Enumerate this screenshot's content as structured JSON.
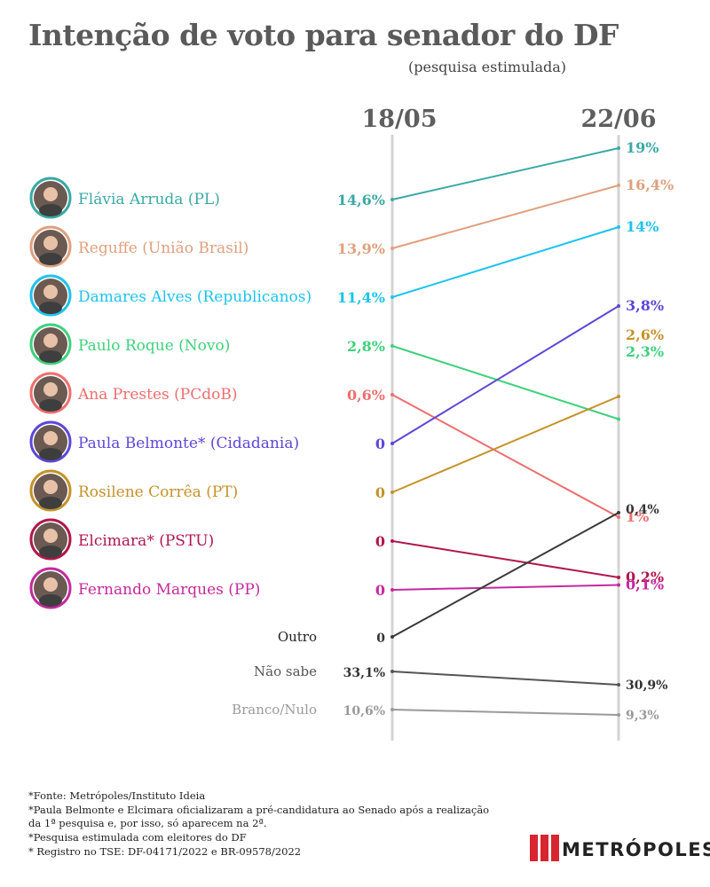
{
  "page": {
    "title": "Intenção de voto para senador do DF",
    "subtitle": "(pesquisa estimulada)"
  },
  "chart_data": {
    "type": "slope",
    "title": "Intenção de voto para senador do DF",
    "subtitle": "(pesquisa estimulada)",
    "x": [
      "18/05",
      "22/06"
    ],
    "series": [
      {
        "name": "Flávia Arruda (PL)",
        "photo": true,
        "color": "#3aa9a5",
        "values": [
          14.6,
          19
        ],
        "labels": [
          "14,6%",
          "19%"
        ]
      },
      {
        "name": "Reguffe (União Brasil)",
        "photo": true,
        "color": "#e0a07e",
        "values": [
          13.9,
          16.4
        ],
        "labels": [
          "13,9%",
          "16,4%"
        ]
      },
      {
        "name": "Damares Alves (Republicanos)",
        "photo": true,
        "color": "#1ec3ee",
        "values": [
          11.4,
          14
        ],
        "labels": [
          "11,4%",
          "14%"
        ]
      },
      {
        "name": "Paulo Roque (Novo)",
        "photo": true,
        "color": "#3fd17c",
        "values": [
          2.8,
          2.3
        ],
        "labels": [
          "2,8%",
          "2,3%"
        ]
      },
      {
        "name": "Ana Prestes  (PCdoB)",
        "photo": true,
        "color": "#ee6e6e",
        "values": [
          0.6,
          1
        ],
        "labels": [
          "0,6%",
          "1%"
        ]
      },
      {
        "name": "Paula Belmonte* (Cidadania)",
        "photo": true,
        "color": "#5e46d8",
        "values": [
          0,
          3.8
        ],
        "labels": [
          "0",
          "3,8%"
        ]
      },
      {
        "name": "Rosilene Corrêa  (PT)",
        "photo": true,
        "color": "#c4922a",
        "values": [
          0,
          2.6
        ],
        "labels": [
          "0",
          "2,6%"
        ]
      },
      {
        "name": "Elcimara* (PSTU)",
        "photo": true,
        "color": "#b0174a",
        "values": [
          0,
          0.2
        ],
        "labels": [
          "0",
          "0,2%"
        ]
      },
      {
        "name": "Fernando Marques (PP)",
        "photo": true,
        "color": "#c42a9e",
        "values": [
          0,
          0.1
        ],
        "labels": [
          "0",
          "0,1%"
        ]
      },
      {
        "name": "Outro",
        "photo": false,
        "color": "#3a3a3a",
        "values": [
          0,
          0.4
        ],
        "labels": [
          "0",
          "0,4%"
        ]
      },
      {
        "name": "Não sabe",
        "photo": false,
        "color": "#555555",
        "values": [
          33.1,
          30.9
        ],
        "labels": [
          "33,1%",
          "30,9%"
        ]
      },
      {
        "name": "Branco/Nulo",
        "photo": false,
        "color": "#9a9a9a",
        "values": [
          10.6,
          9.3
        ],
        "labels": [
          "10,6%",
          "9,3%"
        ]
      }
    ]
  },
  "footnotes": [
    "*Fonte: Metrópoles/Instituto Ideia",
    "*Paula Belmonte e Elcimara oficializaram a pré-candidatura ao Senado após a realização",
    "da 1ª pesquisa e, por isso, só aparecem na 2ª.",
    "*Pesquisa estimulada com eleitores do DF",
    "* Registro no TSE: DF-04171/2022 e BR-09578/2022"
  ],
  "brand": {
    "name": "METRÓPOLES",
    "color": "#d7262f"
  }
}
